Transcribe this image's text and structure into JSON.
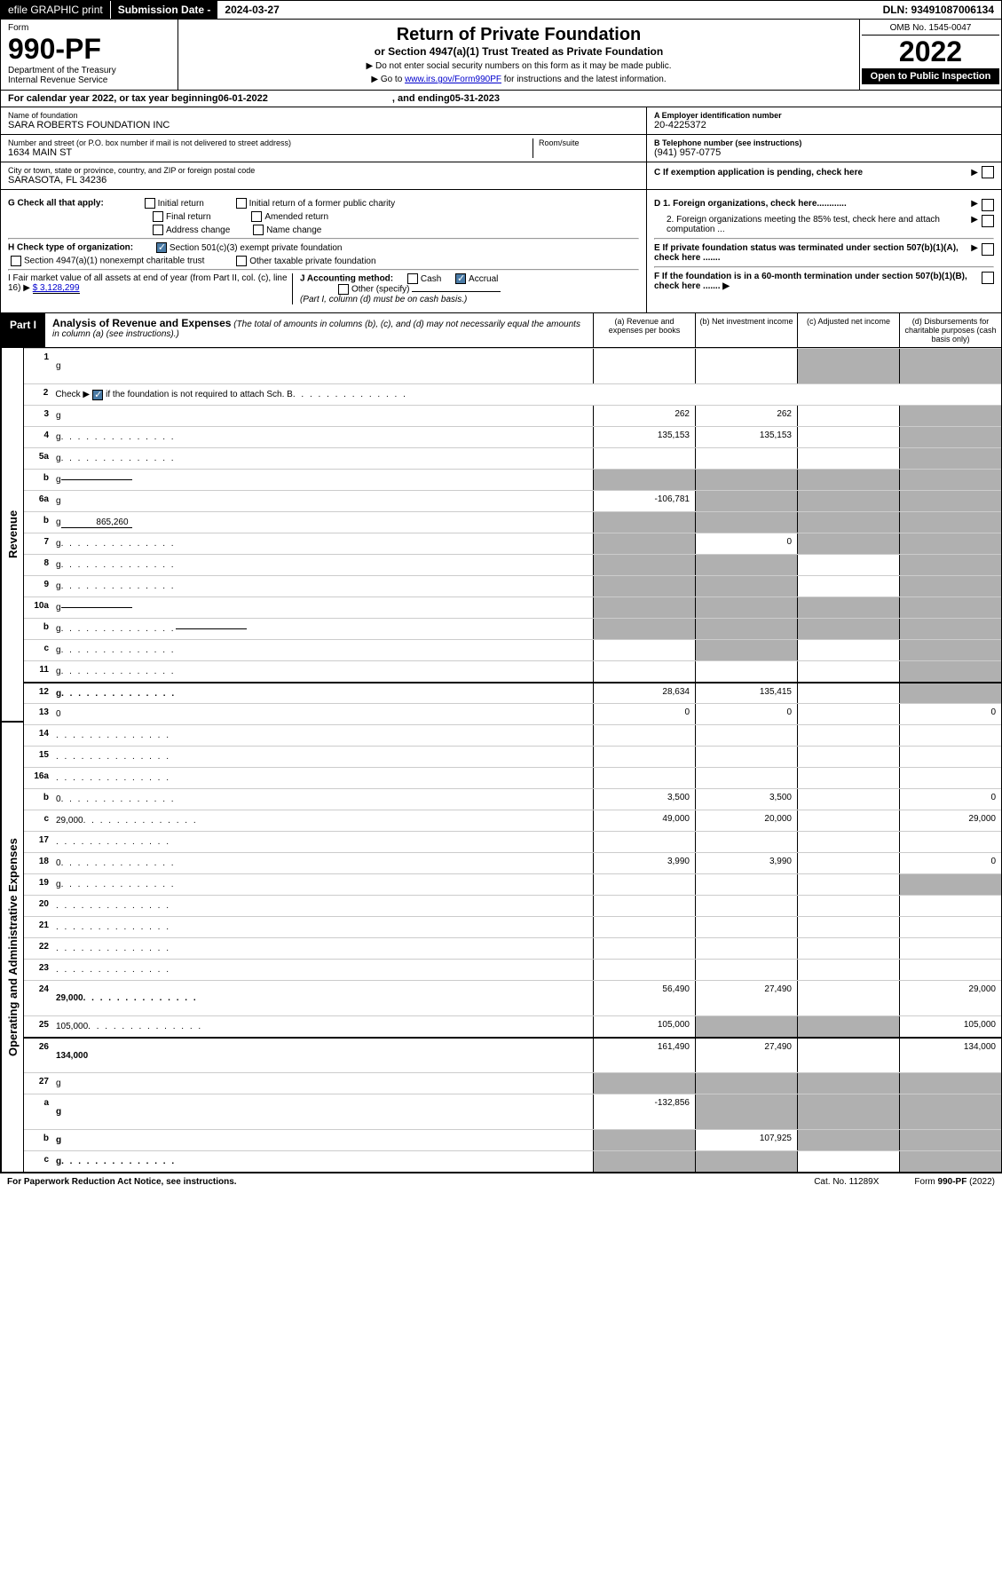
{
  "topbar": {
    "efile": "efile GRAPHIC print",
    "sub_label": "Submission Date - ",
    "sub_date": "2024-03-27",
    "dln": "DLN: 93491087006134"
  },
  "header": {
    "form_word": "Form",
    "form_num": "990-PF",
    "dept": "Department of the Treasury",
    "irs": "Internal Revenue Service",
    "title": "Return of Private Foundation",
    "subtitle": "or Section 4947(a)(1) Trust Treated as Private Foundation",
    "instr1": "▶ Do not enter social security numbers on this form as it may be made public.",
    "instr2_pre": "▶ Go to ",
    "instr2_link": "www.irs.gov/Form990PF",
    "instr2_post": " for instructions and the latest information.",
    "omb": "OMB No. 1545-0047",
    "year": "2022",
    "open": "Open to Public Inspection"
  },
  "cal": {
    "text_pre": "For calendar year 2022, or tax year beginning ",
    "begin": "06-01-2022",
    "text_mid": " , and ending ",
    "end": "05-31-2023"
  },
  "entity": {
    "name_label": "Name of foundation",
    "name": "SARA ROBERTS FOUNDATION INC",
    "addr_label": "Number and street (or P.O. box number if mail is not delivered to street address)",
    "addr": "1634 MAIN ST",
    "room_label": "Room/suite",
    "city_label": "City or town, state or province, country, and ZIP or foreign postal code",
    "city": "SARASOTA, FL  34236",
    "ein_label": "A Employer identification number",
    "ein": "20-4225372",
    "tel_label": "B Telephone number (see instructions)",
    "tel": "(941) 957-0775",
    "c_label": "C If exemption application is pending, check here"
  },
  "checks": {
    "g_label": "G Check all that apply:",
    "g_opts": [
      "Initial return",
      "Initial return of a former public charity",
      "Final return",
      "Amended return",
      "Address change",
      "Name change"
    ],
    "h_label": "H Check type of organization:",
    "h_501c3": "Section 501(c)(3) exempt private foundation",
    "h_4947": "Section 4947(a)(1) nonexempt charitable trust",
    "h_other": "Other taxable private foundation",
    "i_label": "I Fair market value of all assets at end of year (from Part II, col. (c), line 16) ▶",
    "i_val": "$  3,128,299",
    "j_label": "J Accounting method:",
    "j_cash": "Cash",
    "j_accrual": "Accrual",
    "j_other": "Other (specify)",
    "j_note": "(Part I, column (d) must be on cash basis.)",
    "d1": "D 1. Foreign organizations, check here............",
    "d2": "2. Foreign organizations meeting the 85% test, check here and attach computation ...",
    "e": "E  If private foundation status was terminated under section 507(b)(1)(A), check here .......",
    "f": "F  If the foundation is in a 60-month termination under section 507(b)(1)(B), check here .......  ▶"
  },
  "part1": {
    "label": "Part I",
    "title": "Analysis of Revenue and Expenses",
    "note": " (The total of amounts in columns (b), (c), and (d) may not necessarily equal the amounts in column (a) (see instructions).)",
    "col_a": "(a) Revenue and expenses per books",
    "col_b": "(b) Net investment income",
    "col_c": "(c) Adjusted net income",
    "col_d": "(d) Disbursements for charitable purposes (cash basis only)"
  },
  "sides": {
    "rev": "Revenue",
    "exp": "Operating and Administrative Expenses"
  },
  "rows": [
    {
      "n": "1",
      "d": "g",
      "a": "",
      "b": "",
      "c": "g",
      "tall": true
    },
    {
      "n": "2",
      "d_pre": "Check ▶ ",
      "d_post": " if the foundation is not required to attach Sch. B",
      "cb": true,
      "span": true,
      "dots": true
    },
    {
      "n": "3",
      "d": "g",
      "a": "262",
      "b": "262",
      "c": ""
    },
    {
      "n": "4",
      "d": "g",
      "a": "135,153",
      "b": "135,153",
      "c": "",
      "dots": true
    },
    {
      "n": "5a",
      "d": "g",
      "a": "",
      "b": "",
      "c": "",
      "dots": true
    },
    {
      "n": "b",
      "d": "g",
      "inline": "",
      "a": "g",
      "b": "g",
      "c": "g"
    },
    {
      "n": "6a",
      "d": "g",
      "a": "-106,781",
      "b": "g",
      "c": "g"
    },
    {
      "n": "b",
      "d": "g",
      "inline": "865,260",
      "a": "g",
      "b": "g",
      "c": "g"
    },
    {
      "n": "7",
      "d": "g",
      "a": "g",
      "b": "0",
      "c": "g",
      "dots": true
    },
    {
      "n": "8",
      "d": "g",
      "a": "g",
      "b": "g",
      "c": "",
      "dots": true
    },
    {
      "n": "9",
      "d": "g",
      "a": "g",
      "b": "g",
      "c": "",
      "dots": true
    },
    {
      "n": "10a",
      "d": "g",
      "inline": "",
      "a": "g",
      "b": "g",
      "c": "g"
    },
    {
      "n": "b",
      "d": "g",
      "inline": "",
      "a": "g",
      "b": "g",
      "c": "g",
      "dots": true
    },
    {
      "n": "c",
      "d": "g",
      "a": "",
      "b": "g",
      "c": "",
      "dots": true
    },
    {
      "n": "11",
      "d": "g",
      "a": "",
      "b": "",
      "c": "",
      "dots": true
    },
    {
      "n": "12",
      "d": "g",
      "bold": true,
      "a": "28,634",
      "b": "135,415",
      "c": "",
      "dots": true,
      "rule": true
    },
    {
      "n": "13",
      "d": "0",
      "a": "0",
      "b": "0",
      "c": ""
    },
    {
      "n": "14",
      "d": "",
      "a": "",
      "b": "",
      "c": "",
      "dots": true
    },
    {
      "n": "15",
      "d": "",
      "a": "",
      "b": "",
      "c": "",
      "dots": true
    },
    {
      "n": "16a",
      "d": "",
      "a": "",
      "b": "",
      "c": "",
      "dots": true
    },
    {
      "n": "b",
      "d": "0",
      "a": "3,500",
      "b": "3,500",
      "c": "",
      "dots": true
    },
    {
      "n": "c",
      "d": "29,000",
      "a": "49,000",
      "b": "20,000",
      "c": "",
      "dots": true
    },
    {
      "n": "17",
      "d": "",
      "a": "",
      "b": "",
      "c": "",
      "dots": true
    },
    {
      "n": "18",
      "d": "0",
      "a": "3,990",
      "b": "3,990",
      "c": "",
      "dots": true
    },
    {
      "n": "19",
      "d": "g",
      "a": "",
      "b": "",
      "c": "",
      "dots": true
    },
    {
      "n": "20",
      "d": "",
      "a": "",
      "b": "",
      "c": "",
      "dots": true
    },
    {
      "n": "21",
      "d": "",
      "a": "",
      "b": "",
      "c": "",
      "dots": true
    },
    {
      "n": "22",
      "d": "",
      "a": "",
      "b": "",
      "c": "",
      "dots": true
    },
    {
      "n": "23",
      "d": "",
      "a": "",
      "b": "",
      "c": "",
      "dots": true
    },
    {
      "n": "24",
      "d": "29,000",
      "bold": true,
      "a": "56,490",
      "b": "27,490",
      "c": "",
      "dots": true,
      "tall": true
    },
    {
      "n": "25",
      "d": "105,000",
      "a": "105,000",
      "b": "g",
      "c": "g",
      "dots": true
    },
    {
      "n": "26",
      "d": "134,000",
      "bold": true,
      "a": "161,490",
      "b": "27,490",
      "c": "",
      "tall": true,
      "rule": true
    },
    {
      "n": "27",
      "d": "g",
      "a": "g",
      "b": "g",
      "c": "g"
    },
    {
      "n": "a",
      "d": "g",
      "bold": true,
      "a": "-132,856",
      "b": "g",
      "c": "g",
      "tall": true
    },
    {
      "n": "b",
      "d": "g",
      "bold": true,
      "a": "g",
      "b": "107,925",
      "c": "g"
    },
    {
      "n": "c",
      "d": "g",
      "bold": true,
      "a": "g",
      "b": "g",
      "c": "",
      "dots": true
    }
  ],
  "footer": {
    "pra": "For Paperwork Reduction Act Notice, see instructions.",
    "cat": "Cat. No. 11289X",
    "form": "Form 990-PF (2022)"
  }
}
